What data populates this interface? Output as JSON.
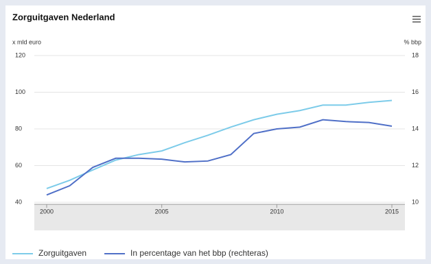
{
  "chart_data": {
    "type": "line",
    "title": "Zorguitgaven Nederland",
    "y_label": "x mld euro",
    "y2_label": "% bbp",
    "x": [
      2000,
      2001,
      2002,
      2003,
      2004,
      2005,
      2006,
      2007,
      2008,
      2009,
      2010,
      2011,
      2012,
      2013,
      2014,
      2015
    ],
    "xlim": [
      2000,
      2015
    ],
    "xticks": [
      2000,
      2005,
      2010,
      2015
    ],
    "ylim": [
      40,
      120
    ],
    "yticks": [
      40,
      60,
      80,
      100,
      120
    ],
    "y2lim": [
      10,
      18
    ],
    "y2ticks": [
      10,
      12,
      14,
      16,
      18
    ],
    "grid": true,
    "legend": "bottom",
    "series": [
      {
        "name": "Zorguitgaven",
        "color": "#7ccbe9",
        "values": [
          47.5,
          52,
          57.6,
          63,
          66,
          68,
          72.5,
          76.5,
          81,
          85,
          88,
          90,
          93,
          93,
          94.5,
          95.5
        ]
      },
      {
        "name": "In percentage van het bbp (rechteras)",
        "color": "#4f6fc7",
        "axis": "y2",
        "values": [
          10.4,
          10.9,
          11.9,
          12.4,
          12.4,
          12.35,
          12.2,
          12.25,
          12.6,
          13.75,
          14.0,
          14.1,
          14.5,
          14.4,
          14.35,
          14.15
        ]
      }
    ]
  }
}
